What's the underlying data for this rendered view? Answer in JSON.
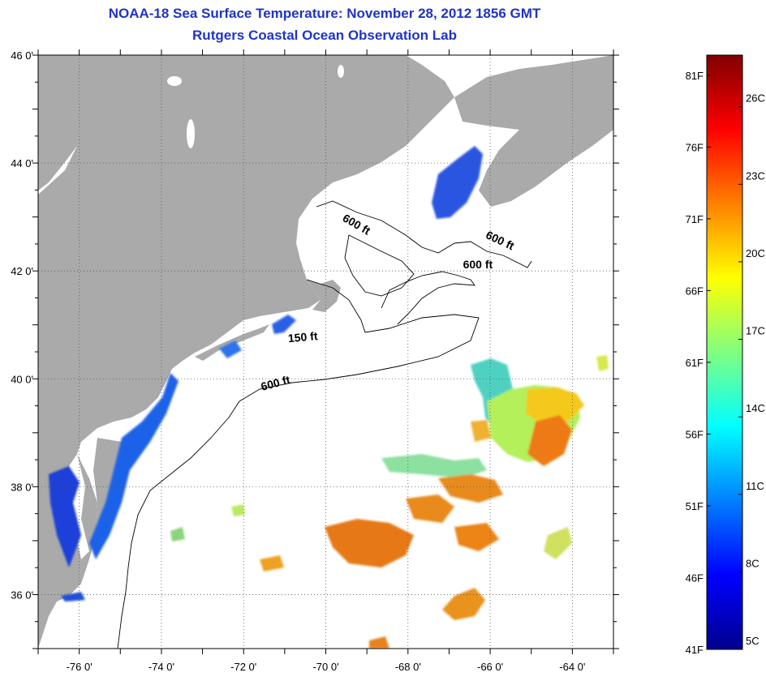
{
  "header": {
    "title_line1": "NOAA-18 Sea Surface Temperature:  November 28, 2012 1856 GMT",
    "title_line2": "Rutgers Coastal Ocean Observation Lab"
  },
  "map": {
    "lon_range": [
      -77,
      -63
    ],
    "lat_range": [
      35,
      46
    ],
    "x_ticks": [
      {
        "value": -76,
        "label": "-76 0'"
      },
      {
        "value": -74,
        "label": "-74 0'"
      },
      {
        "value": -72,
        "label": "-72 0'"
      },
      {
        "value": -70,
        "label": "-70 0'"
      },
      {
        "value": -68,
        "label": "-68 0'"
      },
      {
        "value": -66,
        "label": "-66 0'"
      },
      {
        "value": -64,
        "label": "-64 0'"
      }
    ],
    "y_ticks": [
      {
        "value": 46,
        "label": "46 0'"
      },
      {
        "value": 44,
        "label": "44 0'"
      },
      {
        "value": 42,
        "label": "42 0'"
      },
      {
        "value": 40,
        "label": "40 0'"
      },
      {
        "value": 38,
        "label": "38 0'"
      },
      {
        "value": 36,
        "label": "36 0'"
      }
    ],
    "grid": "dotted",
    "land_color": "#aaaaaa",
    "ocean_color": "#ffffff",
    "isobath_labels": [
      {
        "text": "600 ft",
        "lon": -69.3,
        "lat": 42.8,
        "angle": 30
      },
      {
        "text": "600 ft",
        "lon": -65.8,
        "lat": 42.5,
        "angle": 25
      },
      {
        "text": "600 ft",
        "lon": -66.3,
        "lat": 42.05,
        "angle": 0
      },
      {
        "text": "150 ft",
        "lon": -70.55,
        "lat": 40.7,
        "angle": -5
      },
      {
        "text": "600 ft",
        "lon": -71.2,
        "lat": 39.85,
        "angle": -15
      }
    ]
  },
  "colorbar": {
    "colors": [
      "#00008f",
      "#0000ff",
      "#0080ff",
      "#00ffff",
      "#80ff80",
      "#ffff00",
      "#ff8000",
      "#ff0000",
      "#800000"
    ],
    "min_c": 5,
    "max_c": 28,
    "f_ticks": [
      {
        "value": 41,
        "label": "41F"
      },
      {
        "value": 46,
        "label": "46F"
      },
      {
        "value": 51,
        "label": "51F"
      },
      {
        "value": 56,
        "label": "56F"
      },
      {
        "value": 61,
        "label": "61F"
      },
      {
        "value": 66,
        "label": "66F"
      },
      {
        "value": 71,
        "label": "71F"
      },
      {
        "value": 76,
        "label": "76F"
      },
      {
        "value": 81,
        "label": "81F"
      }
    ],
    "c_ticks": [
      {
        "value": 5,
        "label": "5C"
      },
      {
        "value": 8,
        "label": "8C"
      },
      {
        "value": 11,
        "label": "11C"
      },
      {
        "value": 14,
        "label": "14C"
      },
      {
        "value": 17,
        "label": "17C"
      },
      {
        "value": 20,
        "label": "20C"
      },
      {
        "value": 23,
        "label": "23C"
      },
      {
        "value": 26,
        "label": "26C"
      }
    ]
  }
}
